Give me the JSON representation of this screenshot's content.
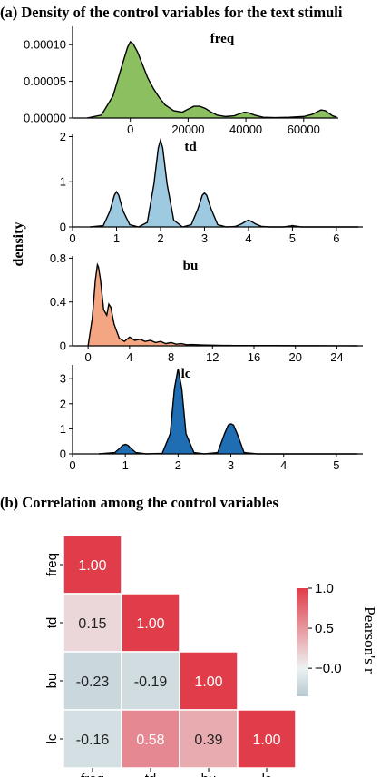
{
  "section_a_title": "(a) Density of the control variables for the text stimuli",
  "section_b_title": "(b) Correlation among the control variables",
  "density_label": "density",
  "colorbar_label": "Pearson's r",
  "colors": {
    "freq": "#8cbf5f",
    "td": "#9ecae1",
    "bu": "#f4a582",
    "lc": "#1f6db3",
    "heat_pos": "#e03c4a",
    "heat_zero": "#edf2f2",
    "heat_neg": "#b7c9d1"
  },
  "chart_data": [
    {
      "type": "area",
      "title": "freq",
      "xlim": [
        -20000,
        72000
      ],
      "ylim": [
        0,
        0.000125
      ],
      "xticks": [
        0,
        20000,
        40000,
        60000
      ],
      "yticks": [
        0.0,
        5e-05,
        0.0001
      ],
      "ytick_labels": [
        "0.00000",
        "0.00005",
        "0.00010"
      ],
      "x": [
        -15000,
        -10000,
        -6000,
        -3000,
        -1000,
        0,
        1000,
        2500,
        4000,
        6000,
        8000,
        10000,
        12000,
        15000,
        18000,
        20000,
        22000,
        24000,
        26000,
        28000,
        30000,
        33000,
        36000,
        38000,
        39500,
        41000,
        43000,
        46000,
        50000,
        55000,
        60000,
        63000,
        64500,
        66000,
        67500,
        68500,
        70000,
        71500
      ],
      "y": [
        0,
        4e-06,
        3e-05,
        7e-05,
        9.6e-05,
        0.000104,
        0.000101,
        9e-05,
        7.5e-05,
        5.5e-05,
        4e-05,
        2.8e-05,
        1.8e-05,
        1e-05,
        8e-06,
        1.2e-05,
        1.6e-05,
        1.6e-05,
        1.3e-05,
        8e-06,
        4e-06,
        2e-06,
        3e-06,
        6e-06,
        8e-06,
        7e-06,
        4e-06,
        1e-06,
        5e-07,
        1e-06,
        2e-06,
        5e-06,
        8e-06,
        1.1e-05,
        1e-05,
        7e-06,
        3e-06,
        1e-06
      ]
    },
    {
      "type": "area",
      "title": "td",
      "xlim": [
        0,
        6.6
      ],
      "ylim": [
        0,
        2.05
      ],
      "xticks": [
        0,
        1,
        2,
        3,
        4,
        5,
        6
      ],
      "yticks": [
        0,
        1,
        2
      ],
      "x": [
        0.4,
        0.7,
        0.85,
        0.95,
        1.0,
        1.05,
        1.15,
        1.3,
        1.5,
        1.7,
        1.85,
        1.95,
        2.0,
        2.05,
        2.15,
        2.3,
        2.5,
        2.7,
        2.85,
        2.95,
        3.0,
        3.05,
        3.15,
        3.3,
        3.5,
        3.7,
        3.85,
        3.95,
        4.0,
        4.05,
        4.15,
        4.3,
        4.5,
        4.8,
        4.95,
        5.0,
        5.05,
        5.2,
        5.6,
        6.0,
        6.5
      ],
      "y": [
        0.0,
        0.03,
        0.35,
        0.7,
        0.78,
        0.7,
        0.35,
        0.05,
        0.0,
        0.1,
        0.95,
        1.75,
        1.92,
        1.75,
        0.95,
        0.15,
        0.0,
        0.05,
        0.4,
        0.7,
        0.75,
        0.7,
        0.4,
        0.05,
        0.0,
        0.01,
        0.07,
        0.13,
        0.15,
        0.13,
        0.07,
        0.01,
        0.0,
        0.0,
        0.02,
        0.03,
        0.02,
        0.0,
        0.0,
        0.0,
        0.0
      ]
    },
    {
      "type": "area",
      "title": "bu",
      "xlim": [
        -1.5,
        26.5
      ],
      "ylim": [
        0,
        0.82
      ],
      "xticks": [
        0,
        4,
        8,
        12,
        16,
        20,
        24
      ],
      "yticks": [
        0.0,
        0.4,
        0.8
      ],
      "x": [
        0.0,
        0.4,
        0.7,
        0.9,
        1.0,
        1.2,
        1.5,
        1.8,
        2.0,
        2.2,
        2.5,
        3.0,
        3.5,
        4.0,
        4.5,
        5.0,
        5.5,
        6.0,
        6.5,
        7.0,
        7.5,
        8.0,
        8.5,
        9.0,
        9.5,
        10.0,
        11.0,
        12.0,
        13.0,
        14.0,
        16.0,
        18.0,
        20.0,
        22.0,
        24.0,
        26.0
      ],
      "y": [
        0.0,
        0.25,
        0.6,
        0.74,
        0.72,
        0.6,
        0.33,
        0.28,
        0.38,
        0.35,
        0.2,
        0.07,
        0.04,
        0.08,
        0.05,
        0.06,
        0.04,
        0.05,
        0.03,
        0.04,
        0.02,
        0.03,
        0.015,
        0.02,
        0.01,
        0.012,
        0.008,
        0.006,
        0.004,
        0.003,
        0.002,
        0.002,
        0.001,
        0.001,
        0.0005,
        0.0
      ]
    },
    {
      "type": "area",
      "title": "lc",
      "xlim": [
        0,
        5.5
      ],
      "ylim": [
        0,
        3.55
      ],
      "xticks": [
        0,
        1,
        2,
        3,
        4,
        5
      ],
      "yticks": [
        0,
        1,
        2,
        3
      ],
      "x": [
        0.5,
        0.8,
        0.9,
        0.95,
        1.0,
        1.05,
        1.1,
        1.2,
        1.4,
        1.7,
        1.85,
        1.93,
        2.0,
        2.07,
        2.15,
        2.3,
        2.5,
        2.75,
        2.88,
        2.95,
        3.0,
        3.05,
        3.12,
        3.25,
        3.5,
        4.0,
        4.5,
        5.0,
        5.4
      ],
      "y": [
        0.0,
        0.05,
        0.23,
        0.34,
        0.38,
        0.34,
        0.23,
        0.05,
        0.0,
        0.02,
        0.8,
        2.6,
        3.4,
        2.6,
        0.8,
        0.05,
        0.0,
        0.05,
        0.8,
        1.15,
        1.2,
        1.15,
        0.8,
        0.05,
        0.0,
        0.0,
        0.0,
        0.0,
        0.0
      ]
    },
    {
      "type": "heatmap",
      "title": "",
      "rows": [
        "freq",
        "td",
        "bu",
        "lc"
      ],
      "cols": [
        "freq",
        "td",
        "bu",
        "lc"
      ],
      "values": [
        [
          1.0,
          null,
          null,
          null
        ],
        [
          0.15,
          1.0,
          null,
          null
        ],
        [
          -0.23,
          -0.19,
          1.0,
          null
        ],
        [
          -0.16,
          0.58,
          0.39,
          1.0
        ]
      ],
      "labels": [
        [
          "1.00",
          "",
          "",
          ""
        ],
        [
          "0.15",
          "1.00",
          "",
          ""
        ],
        [
          "-0.23",
          "-0.19",
          "1.00",
          ""
        ],
        [
          "-0.16",
          "0.58",
          "0.39",
          "1.00"
        ]
      ],
      "colorbar": {
        "label": "Pearson's r",
        "range": [
          -0.35,
          1.0
        ],
        "ticks": [
          -0.0,
          0.5,
          1.0
        ],
        "tick_labels": [
          "−0.0",
          "0.5",
          "1.0"
        ]
      }
    }
  ]
}
